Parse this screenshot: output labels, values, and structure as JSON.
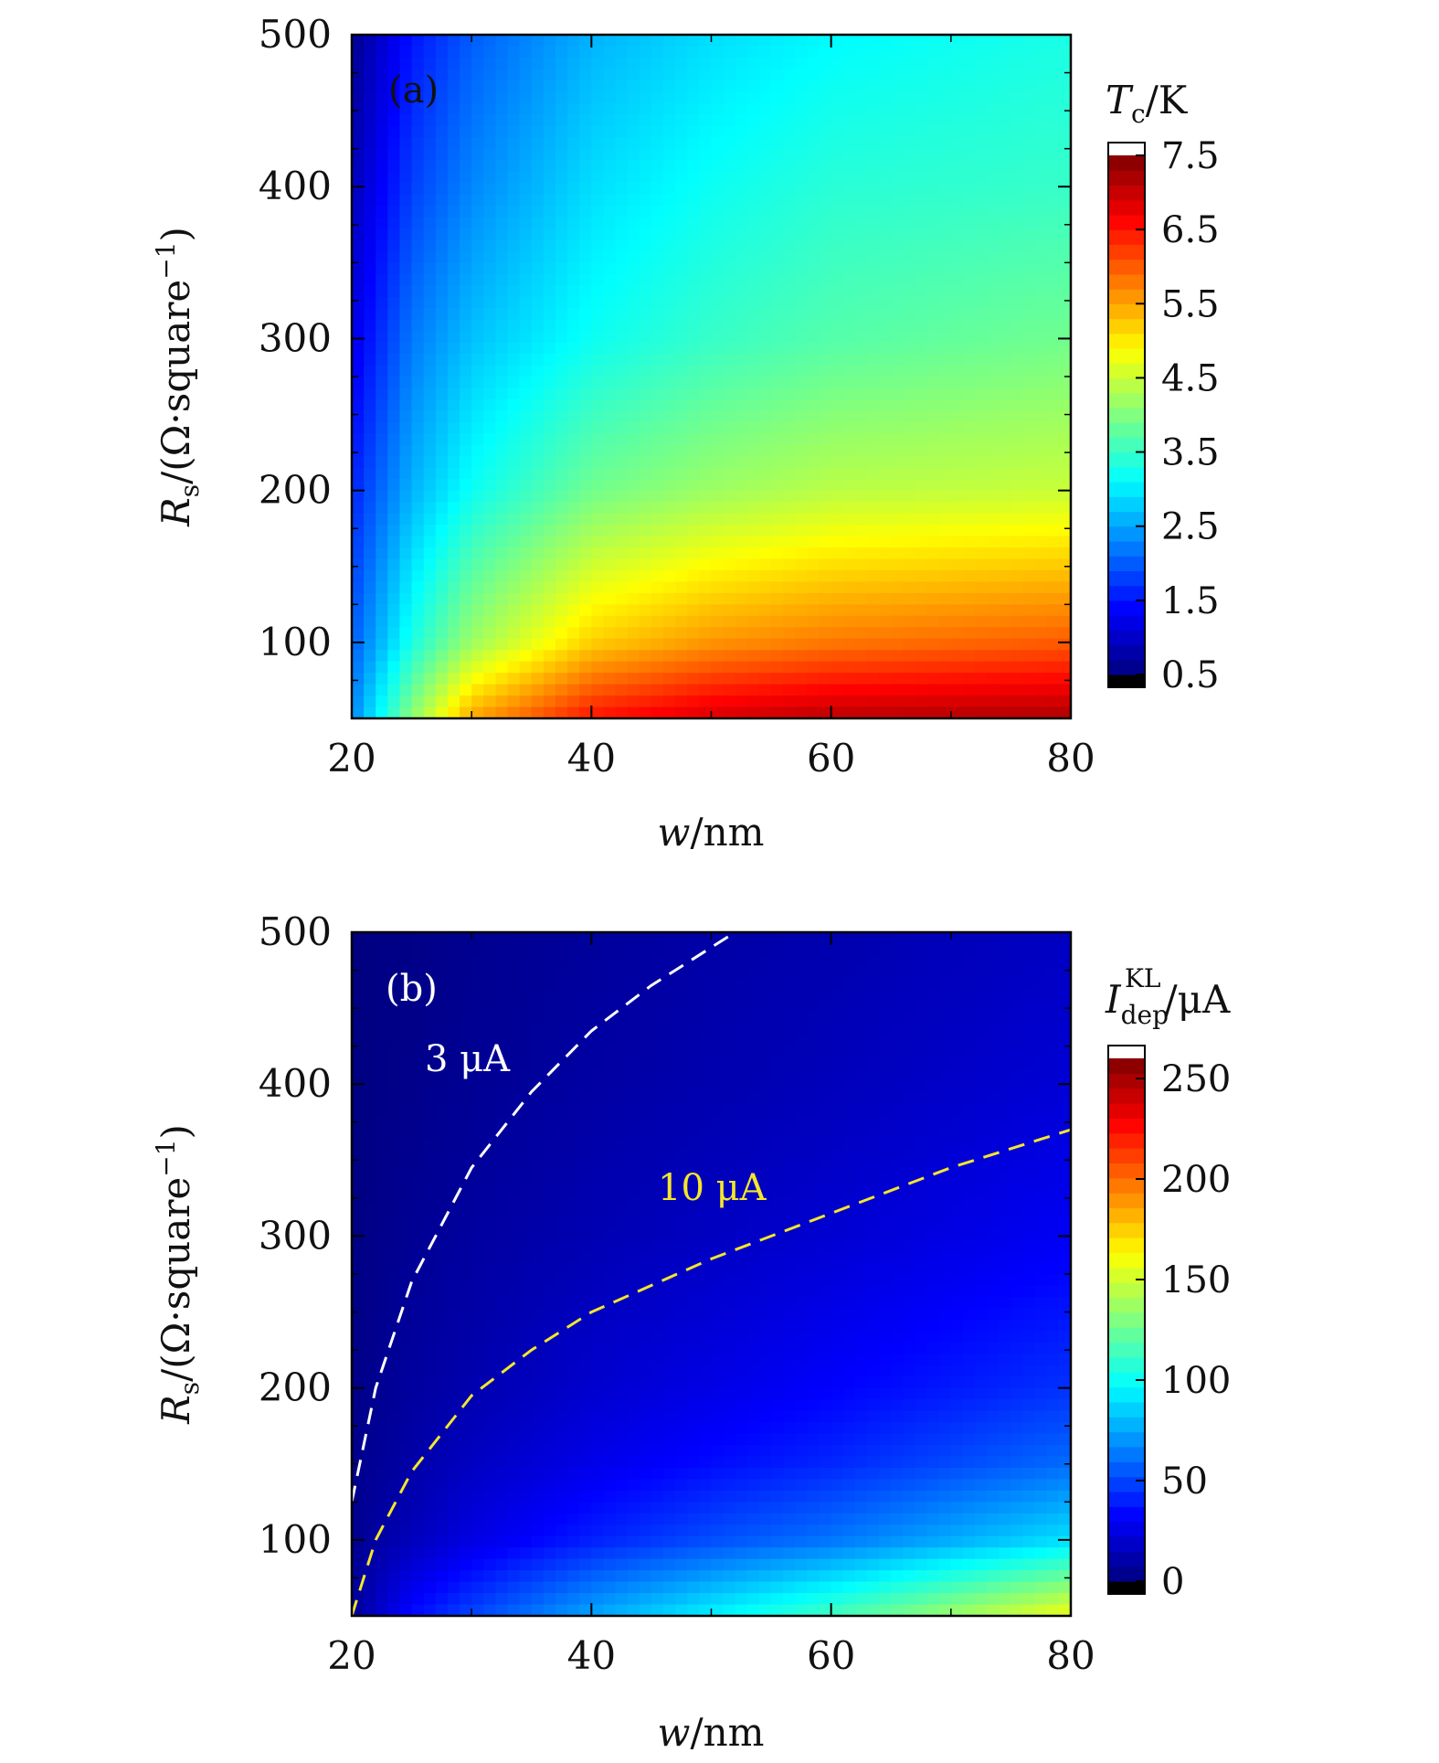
{
  "chart_data": [
    {
      "type": "heatmap",
      "panel_label": "(a)",
      "x_label_main": "w",
      "x_label_unit": "/nm",
      "y_label_main": "R",
      "y_label_sub": "s",
      "y_label_unit_pre": "/(Ω·square",
      "y_label_unit_sup": "−1",
      "y_label_unit_post": ")",
      "xlim": [
        20,
        80
      ],
      "ylim": [
        50,
        500
      ],
      "x_ticks": [
        20,
        40,
        60,
        80
      ],
      "x_tick_labels": [
        "20",
        "40",
        "60",
        "80"
      ],
      "y_ticks": [
        100,
        200,
        300,
        400,
        500
      ],
      "y_tick_labels": [
        "100",
        "200",
        "300",
        "400",
        "500"
      ],
      "colorbar": {
        "title_main": "T",
        "title_sub": "c",
        "title_unit": "/K",
        "range": [
          0.5,
          7.5
        ],
        "ticks": [
          0.5,
          1.5,
          2.5,
          3.5,
          4.5,
          5.5,
          6.5,
          7.5
        ],
        "tick_labels": [
          "0.5",
          "1.5",
          "2.5",
          "3.5",
          "4.5",
          "5.5",
          "6.5",
          "7.5"
        ]
      },
      "colormap": "jet",
      "samples": {
        "w": [
          20,
          25,
          30,
          40,
          50,
          60,
          80
        ],
        "Rs": [
          50,
          100,
          200,
          300,
          400,
          500
        ],
        "Tc": [
          [
            2.3,
            4.1,
            5.5,
            6.5,
            6.9,
            7.1,
            7.2
          ],
          [
            2.0,
            3.3,
            4.2,
            5.2,
            5.6,
            5.8,
            6.0
          ],
          [
            1.6,
            2.6,
            3.2,
            3.9,
            4.2,
            4.4,
            4.5
          ],
          [
            1.2,
            2.2,
            2.7,
            3.2,
            3.5,
            3.7,
            3.9
          ],
          [
            0.9,
            1.8,
            2.3,
            2.9,
            3.2,
            3.4,
            3.5
          ],
          [
            0.6,
            1.5,
            2.0,
            2.6,
            2.9,
            3.1,
            3.3
          ]
        ]
      }
    },
    {
      "type": "heatmap",
      "panel_label": "(b)",
      "x_label_main": "w",
      "x_label_unit": "/nm",
      "y_label_main": "R",
      "y_label_sub": "s",
      "y_label_unit_pre": "/(Ω·square",
      "y_label_unit_sup": "−1",
      "y_label_unit_post": ")",
      "xlim": [
        20,
        80
      ],
      "ylim": [
        50,
        500
      ],
      "x_ticks": [
        20,
        40,
        60,
        80
      ],
      "x_tick_labels": [
        "20",
        "40",
        "60",
        "80"
      ],
      "y_ticks": [
        100,
        200,
        300,
        400,
        500
      ],
      "y_tick_labels": [
        "100",
        "200",
        "300",
        "400",
        "500"
      ],
      "colorbar": {
        "title_main": "I",
        "title_sub": "dep",
        "title_sup": "KL",
        "title_unit": "/μA",
        "range": [
          0,
          260
        ],
        "ticks": [
          0,
          50,
          100,
          150,
          200,
          250
        ],
        "tick_labels": [
          "0",
          "50",
          "100",
          "150",
          "200",
          "250"
        ]
      },
      "colormap": "jet",
      "samples": {
        "w": [
          20,
          25,
          30,
          40,
          50,
          60,
          80
        ],
        "Rs": [
          50,
          100,
          150,
          200,
          300,
          400,
          500
        ],
        "I_dep": [
          [
            6,
            35,
            50,
            75,
            95,
            115,
            160
          ],
          [
            4,
            15,
            25,
            40,
            52,
            62,
            90
          ],
          [
            3,
            10,
            17,
            27,
            35,
            42,
            60
          ],
          [
            2,
            8,
            12,
            20,
            26,
            32,
            45
          ],
          [
            1,
            5,
            8,
            13,
            17,
            21,
            30
          ],
          [
            0.5,
            3,
            5,
            9,
            12,
            15,
            22
          ],
          [
            0,
            2,
            4,
            7,
            10,
            12,
            17
          ]
        ]
      },
      "contours": [
        {
          "label": "3 μA",
          "color": "#ffffff",
          "x": [
            20,
            22,
            25,
            30,
            35,
            40,
            45,
            52
          ],
          "y": [
            125,
            200,
            270,
            345,
            395,
            435,
            465,
            500
          ]
        },
        {
          "label": "10 μA",
          "color": "#f5e62c",
          "x": [
            20,
            22,
            25,
            30,
            35,
            40,
            50,
            60,
            70,
            80
          ],
          "y": [
            50,
            100,
            145,
            195,
            225,
            250,
            285,
            315,
            345,
            370
          ]
        }
      ]
    }
  ]
}
